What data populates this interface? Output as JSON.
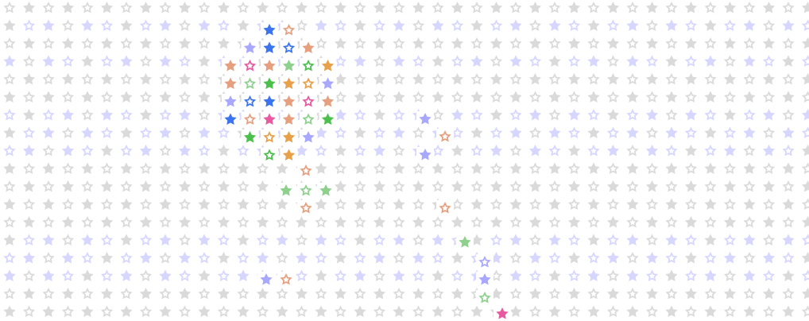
{
  "pattern": {
    "base_star_color": "#dadada",
    "tinted_star_color": "#d6d6ff",
    "figure_colors": {
      "orange": "#e8a04a",
      "blue": "#3c74f0",
      "pink": "#e85aa0",
      "green": "#4cc04c",
      "lavender": "#a8a8ff",
      "peach": "#e6a080",
      "mint": "#8fd08f",
      "gray": "#c8c8c8"
    }
  }
}
